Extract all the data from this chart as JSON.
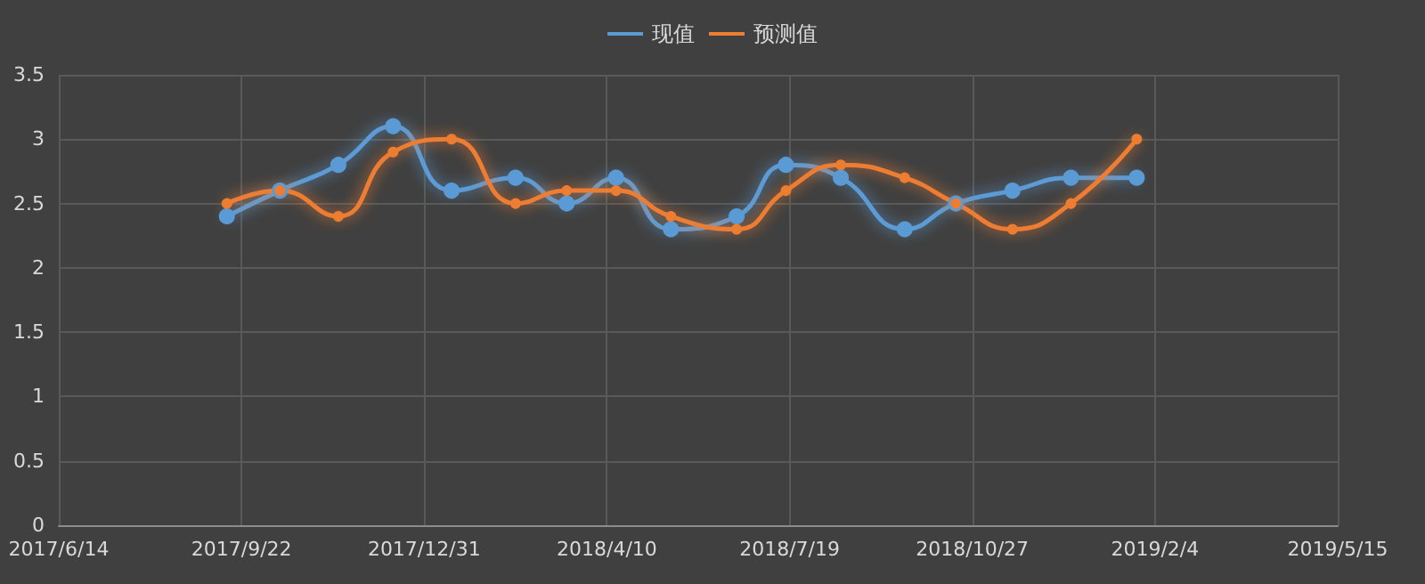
{
  "chart_data": {
    "type": "line",
    "x": [
      "2017-09-14",
      "2017-10-13",
      "2017-11-14",
      "2017-12-14",
      "2018-01-15",
      "2018-02-19",
      "2018-03-19",
      "2018-04-15",
      "2018-05-15",
      "2018-06-20",
      "2018-07-17",
      "2018-08-16",
      "2018-09-20",
      "2018-10-18",
      "2018-11-18",
      "2018-12-20",
      "2019-01-25"
    ],
    "series": [
      {
        "name": "现值",
        "color": "#5b9bd5",
        "values": [
          2.4,
          2.6,
          2.8,
          3.1,
          2.6,
          2.7,
          2.5,
          2.7,
          2.3,
          2.4,
          2.8,
          2.7,
          2.3,
          2.5,
          2.6,
          2.7,
          2.7
        ]
      },
      {
        "name": "预测值",
        "color": "#ed7d31",
        "values": [
          2.5,
          2.6,
          2.4,
          2.9,
          3.0,
          2.5,
          2.6,
          2.6,
          2.4,
          2.3,
          2.6,
          2.8,
          2.7,
          2.5,
          2.3,
          2.5,
          3.0
        ]
      }
    ],
    "xlim": [
      "2017-06-14",
      "2019-05-15"
    ],
    "xticks": [
      {
        "value": "2017-06-14",
        "label": "2017/6/14"
      },
      {
        "value": "2017-09-22",
        "label": "2017/9/22"
      },
      {
        "value": "2017-12-31",
        "label": "2017/12/31"
      },
      {
        "value": "2018-04-10",
        "label": "2018/4/10"
      },
      {
        "value": "2018-07-19",
        "label": "2018/7/19"
      },
      {
        "value": "2018-10-27",
        "label": "2018/10/27"
      },
      {
        "value": "2019-02-04",
        "label": "2019/2/4"
      },
      {
        "value": "2019-05-15",
        "label": "2019/5/15"
      }
    ],
    "ylim": [
      0,
      3.5
    ],
    "yticks": [
      0,
      0.5,
      1,
      1.5,
      2,
      2.5,
      3,
      3.5
    ],
    "grid": true,
    "legend": "top",
    "marker": "circle",
    "line_style": "solid"
  }
}
